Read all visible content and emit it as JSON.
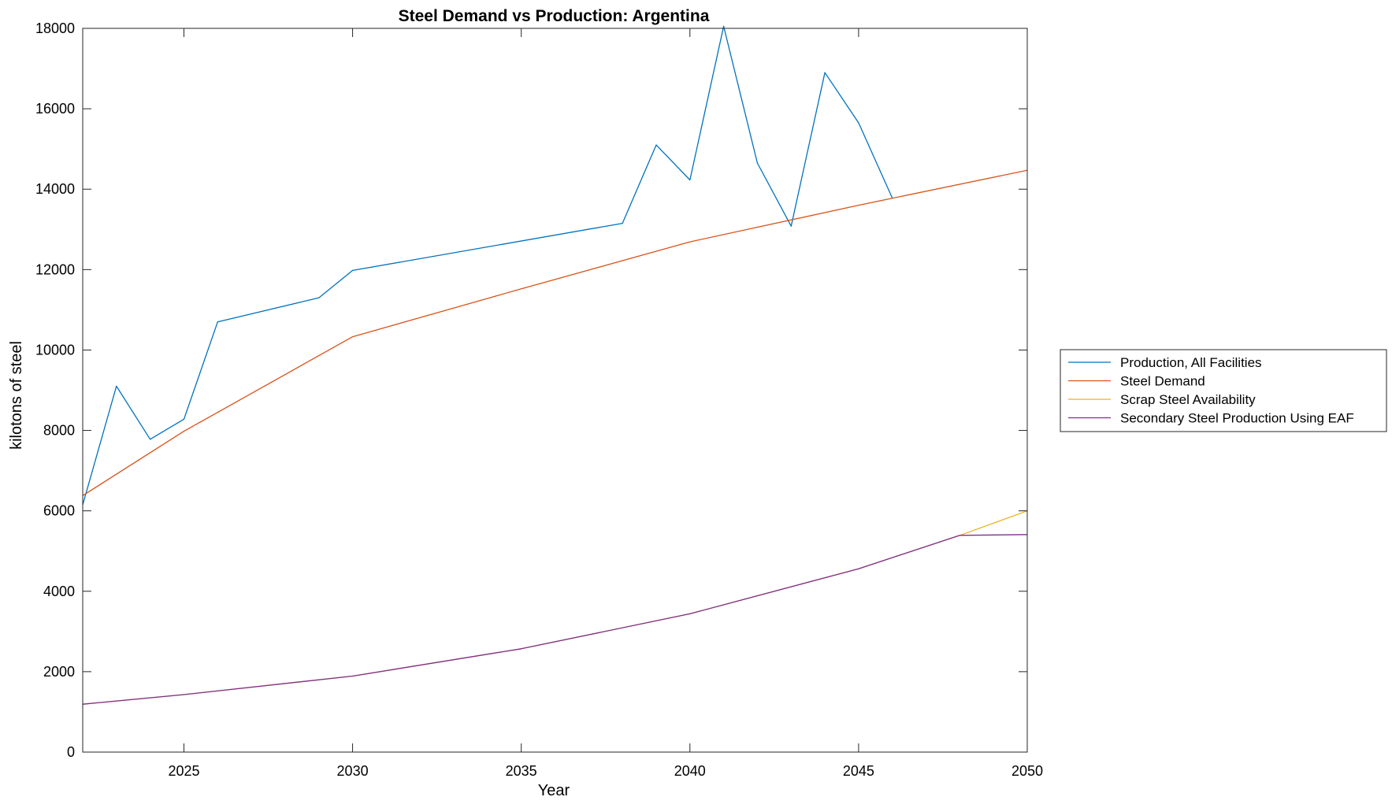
{
  "chart_data": {
    "type": "line",
    "title": "Steel Demand vs Production: Argentina",
    "xlabel": "Year",
    "ylabel": "kilotons of steel",
    "xlim": [
      2022,
      2050
    ],
    "ylim": [
      0,
      18000
    ],
    "x_ticks": [
      2025,
      2030,
      2035,
      2040,
      2045,
      2050
    ],
    "y_ticks": [
      0,
      2000,
      4000,
      6000,
      8000,
      10000,
      12000,
      14000,
      16000,
      18000
    ],
    "grid": false,
    "legend_position": "right",
    "series": [
      {
        "name": "Production, All Facilities",
        "color": "#0072BD",
        "x": [
          2022,
          2023,
          2024,
          2025,
          2026,
          2029,
          2030,
          2038,
          2039,
          2040,
          2041,
          2042,
          2043,
          2044,
          2045,
          2046
        ],
        "y": [
          6150,
          9100,
          7780,
          8280,
          10700,
          11300,
          11980,
          13150,
          15100,
          14230,
          18050,
          14650,
          13080,
          16900,
          15650,
          13780
        ]
      },
      {
        "name": "Steel Demand",
        "color": "#D95319",
        "x": [
          2022,
          2025,
          2030,
          2035,
          2040,
          2045,
          2050
        ],
        "y": [
          6380,
          7980,
          10330,
          11520,
          12690,
          13600,
          14470
        ]
      },
      {
        "name": "Scrap Steel Availability",
        "color": "#EDB120",
        "x": [
          2022,
          2025,
          2030,
          2035,
          2040,
          2045,
          2048,
          2050
        ],
        "y": [
          1190,
          1430,
          1890,
          2570,
          3440,
          4560,
          5390,
          6000
        ]
      },
      {
        "name": "Secondary Steel Production Using EAF",
        "color": "#7E2F8E",
        "x": [
          2022,
          2025,
          2030,
          2035,
          2040,
          2045,
          2048,
          2050
        ],
        "y": [
          1190,
          1430,
          1890,
          2570,
          3440,
          4560,
          5390,
          5410
        ]
      }
    ]
  }
}
